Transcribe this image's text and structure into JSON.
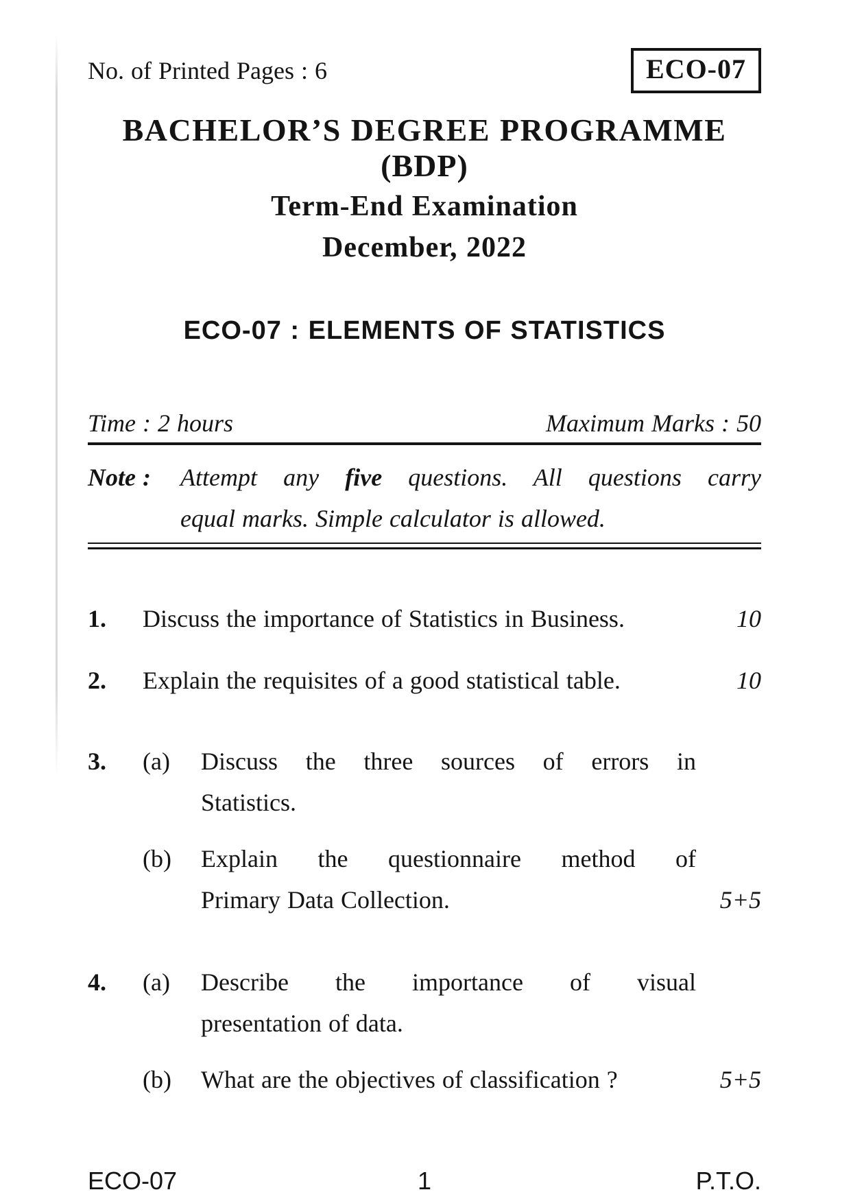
{
  "header": {
    "printed_pages": "No. of Printed Pages : 6",
    "course_code": "ECO-07"
  },
  "titles": {
    "programme": "BACHELOR’S DEGREE PROGRAMME",
    "programme_short": "(BDP)",
    "exam": "Term-End Examination",
    "session": "December, 2022"
  },
  "subject_line": "ECO-07 : ELEMENTS OF STATISTICS",
  "meta": {
    "time": "Time : 2 hours",
    "marks": "Maximum Marks : 50"
  },
  "note": {
    "label": "Note :",
    "line1_part1": "Attempt any ",
    "line1_bold": "five",
    "line1_part2": " questions. All questions carry",
    "line2": "equal marks. Simple calculator is allowed."
  },
  "questions": [
    {
      "number": "1.",
      "text": "Discuss the importance of Statistics in Business.",
      "marks": "10"
    },
    {
      "number": "2.",
      "text": "Explain the requisites of a good statistical table.",
      "marks": "10"
    },
    {
      "number": "3.",
      "parts": [
        {
          "label": "(a)",
          "line1": "Discuss the three sources of errors in",
          "line2": "Statistics."
        },
        {
          "label": "(b)",
          "line1": "Explain the questionnaire method of",
          "line2": "Primary Data Collection.",
          "marks": "5+5"
        }
      ]
    },
    {
      "number": "4.",
      "parts": [
        {
          "label": "(a)",
          "line1": "Describe the importance of visual",
          "line2": "presentation of data."
        },
        {
          "label": "(b)",
          "line1": "What are the objectives of classification ?",
          "marks": "5+5"
        }
      ]
    }
  ],
  "footer": {
    "course": "ECO-07",
    "page_number": "1",
    "pto": "P.T.O."
  }
}
